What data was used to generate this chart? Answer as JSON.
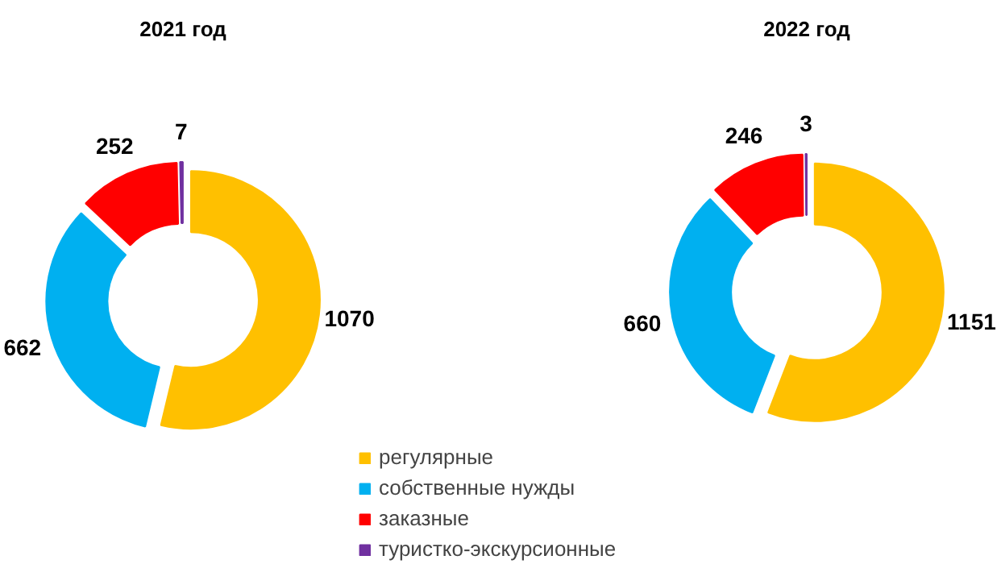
{
  "chart_data": [
    {
      "type": "donut",
      "title": "2021 год",
      "categories": [
        "регулярные",
        "собственные нужды",
        "заказные",
        "туристко-экскурсионные"
      ],
      "values": [
        1070,
        662,
        252,
        7
      ],
      "colors": [
        "#ffc000",
        "#00b0f0",
        "#ff0000",
        "#7030a0"
      ],
      "data_labels": true,
      "legend": "bottom right"
    },
    {
      "type": "donut",
      "title": "2022 год",
      "categories": [
        null,
        null,
        null,
        null
      ],
      "values": [
        1151,
        660,
        246,
        3
      ],
      "colors": [
        "#ffc000",
        "#00b0f0",
        "#ff0000",
        "#7030a0"
      ],
      "data_labels": true
    }
  ]
}
